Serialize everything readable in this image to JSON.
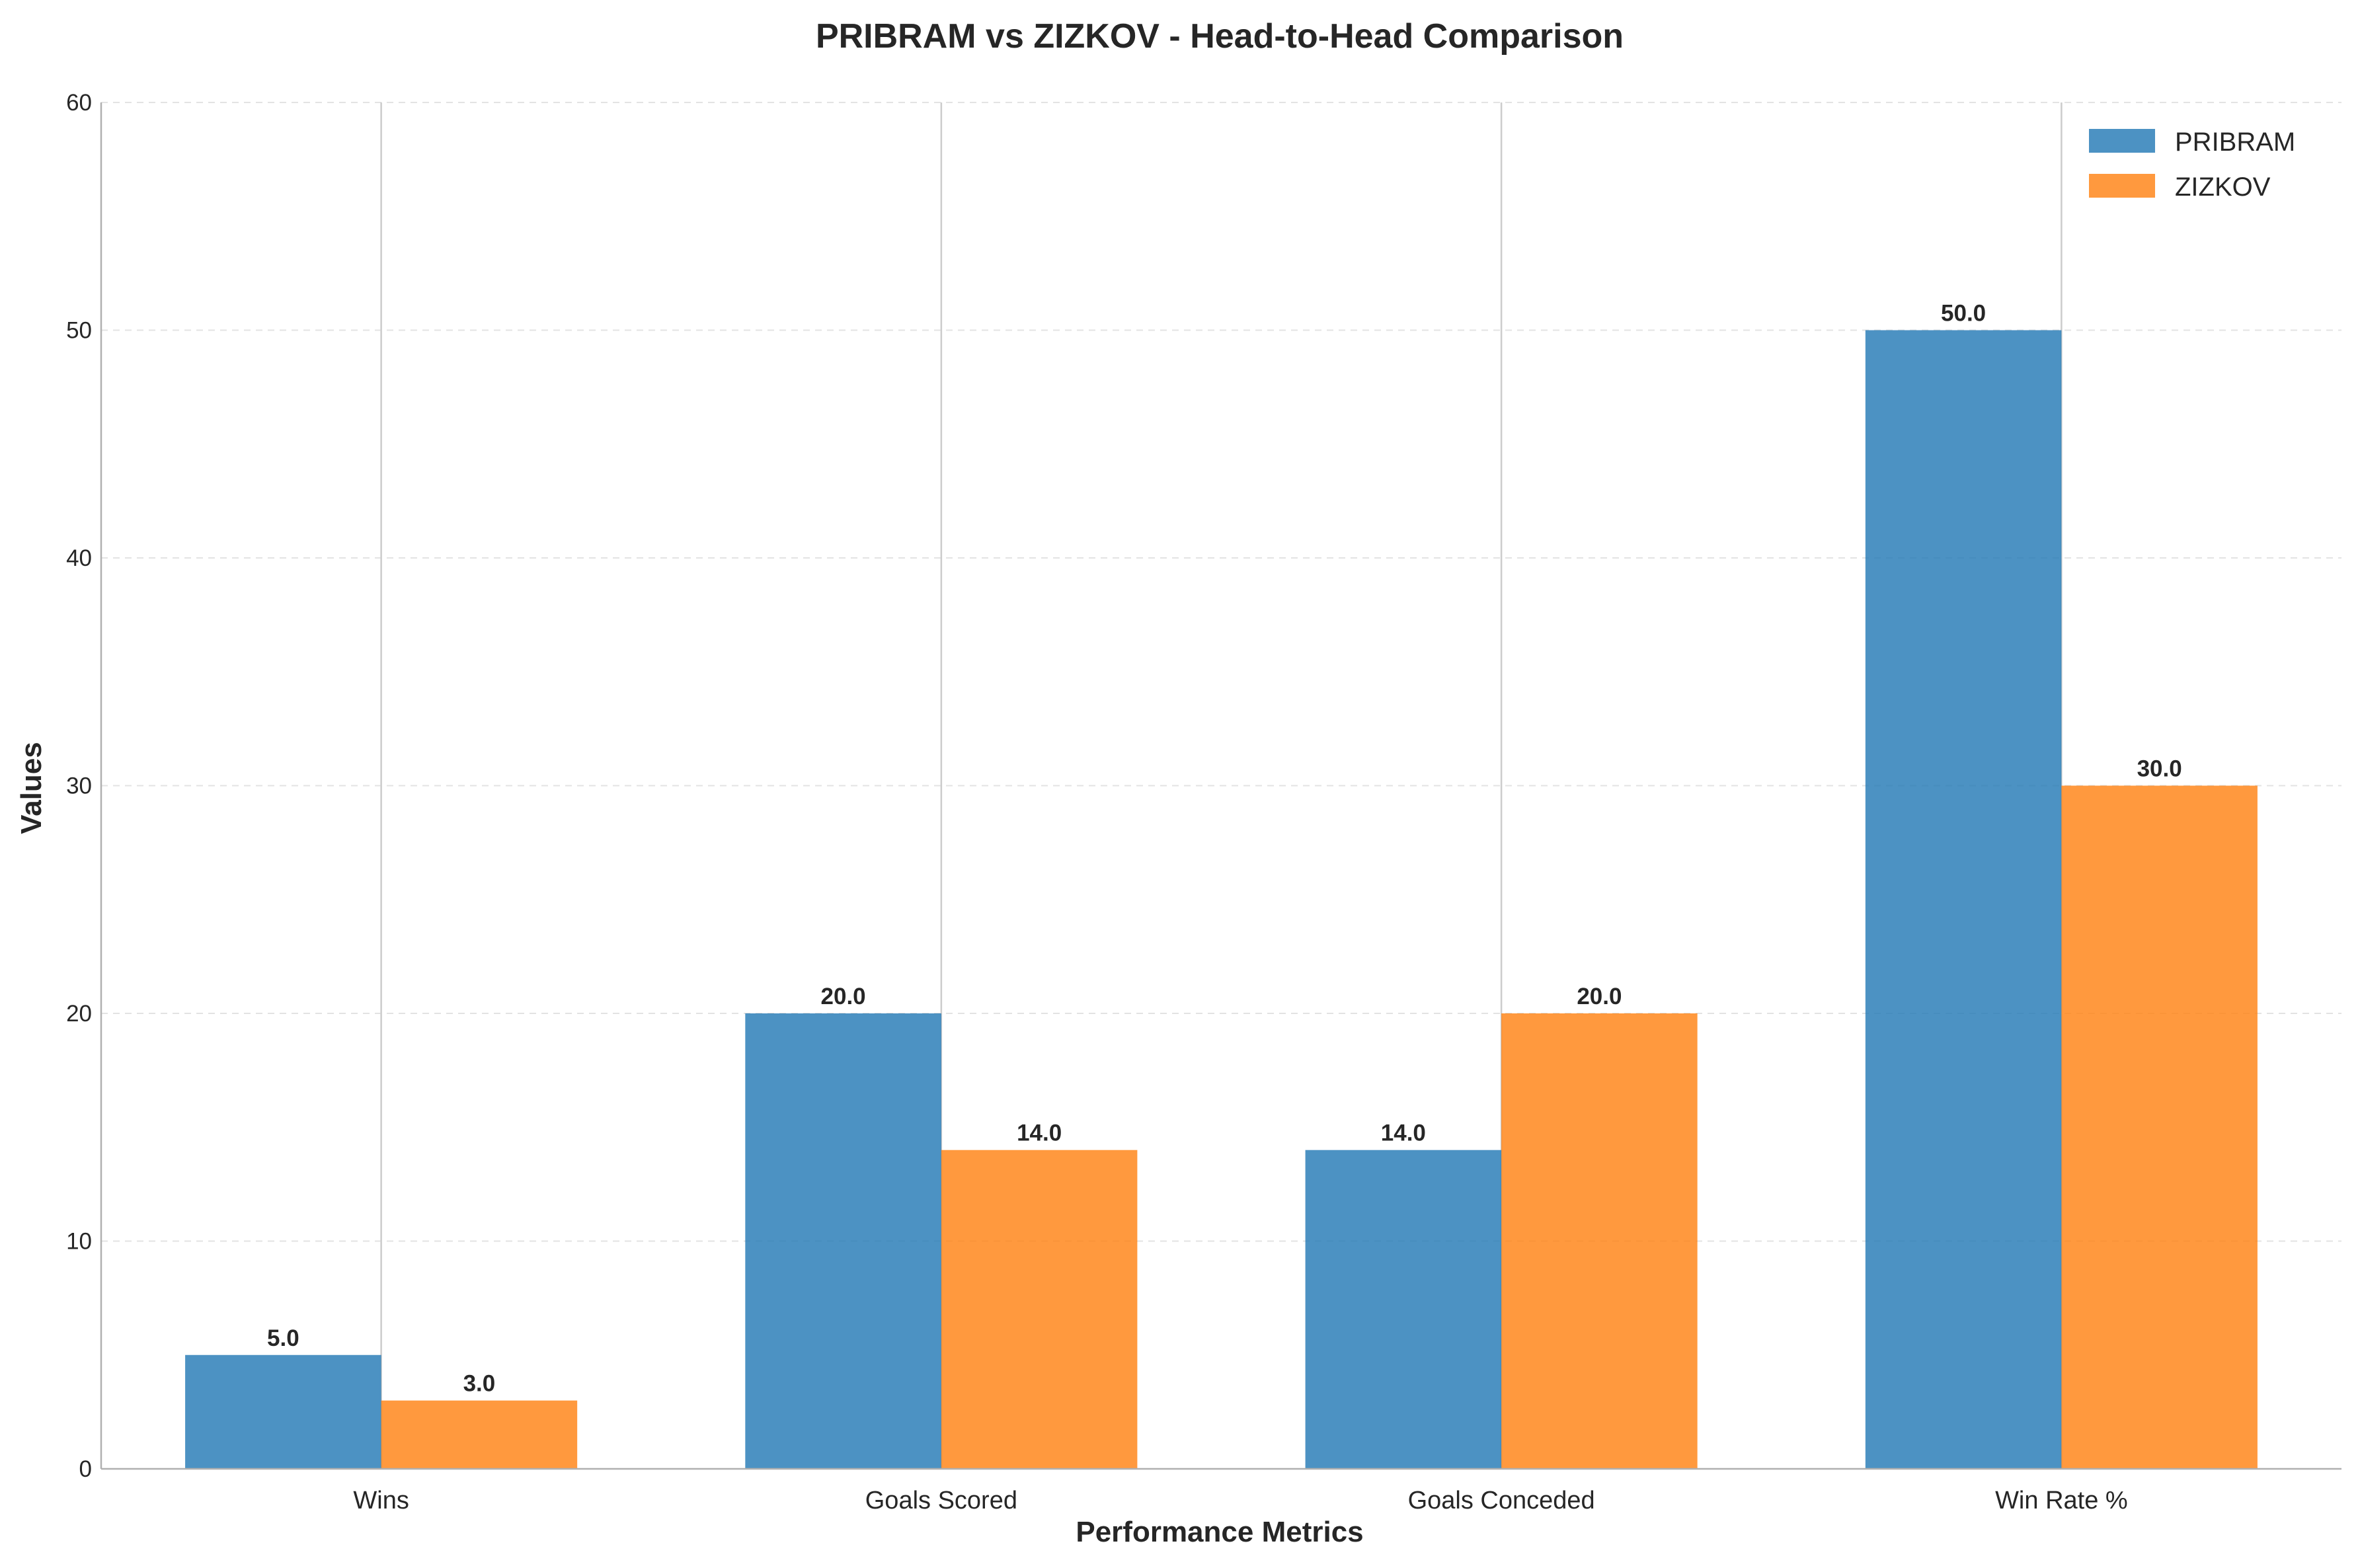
{
  "chart_data": {
    "type": "bar",
    "title": "PRIBRAM vs ZIZKOV - Head-to-Head Comparison",
    "xlabel": "Performance Metrics",
    "ylabel": "Values",
    "categories": [
      "Wins",
      "Goals Scored",
      "Goals Conceded",
      "Win Rate %"
    ],
    "series": [
      {
        "name": "PRIBRAM",
        "values": [
          5.0,
          20.0,
          14.0,
          50.0
        ],
        "color": "#1f77b4"
      },
      {
        "name": "ZIZKOV",
        "values": [
          3.0,
          14.0,
          20.0,
          30.0
        ],
        "color": "#ff7f0e"
      }
    ],
    "ylim": [
      0,
      60
    ],
    "yticks": [
      0,
      10,
      20,
      30,
      40,
      50,
      60
    ],
    "value_labels": [
      [
        "5.0",
        "20.0",
        "14.0",
        "50.0"
      ],
      [
        "3.0",
        "14.0",
        "20.0",
        "30.0"
      ]
    ],
    "grid": true,
    "legend_position": "top-right"
  }
}
